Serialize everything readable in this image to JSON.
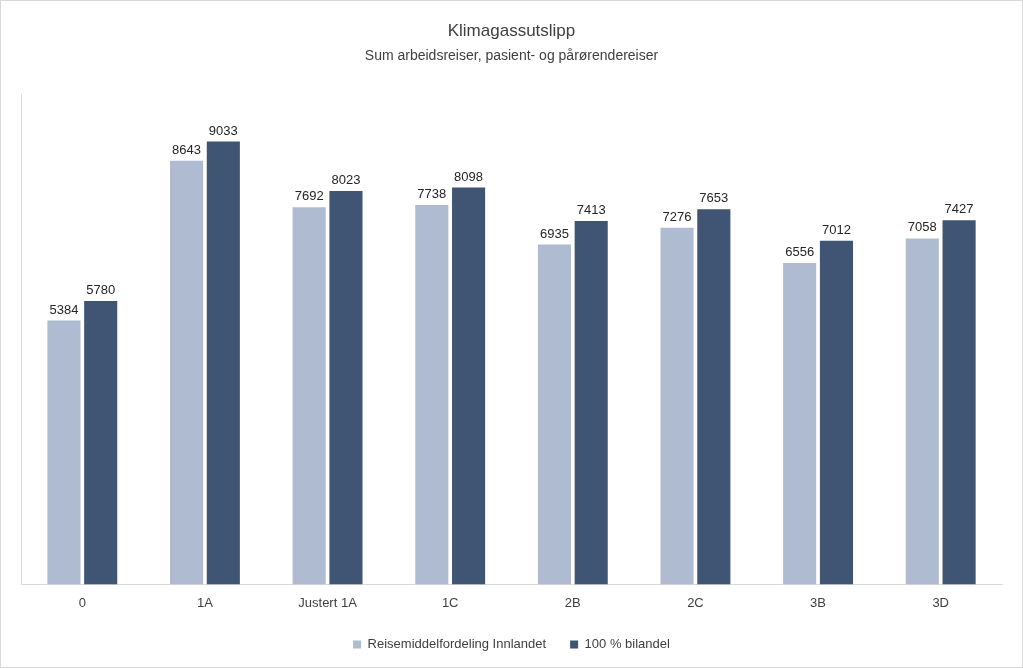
{
  "chart_data": {
    "type": "bar",
    "title": "Klimagassutslipp",
    "subtitle": "Sum arbeidsreiser, pasient- og pårørendereiser",
    "categories": [
      "0",
      "1A",
      "Justert 1A",
      "1C",
      "2B",
      "2C",
      "3B",
      "3D"
    ],
    "series": [
      {
        "name": "Reisemiddelfordeling Innlandet",
        "color": "#aebbd1",
        "values": [
          5384,
          8643,
          7692,
          7738,
          6935,
          7276,
          6556,
          7058
        ]
      },
      {
        "name": "100 % bilandel",
        "color": "#3f5573",
        "values": [
          5780,
          9033,
          8023,
          8098,
          7413,
          7653,
          7012,
          7427
        ]
      }
    ],
    "ylim": [
      0,
      10000
    ],
    "grid": false,
    "legend": "bottom",
    "data_labels": true,
    "tick_labels": "x"
  }
}
